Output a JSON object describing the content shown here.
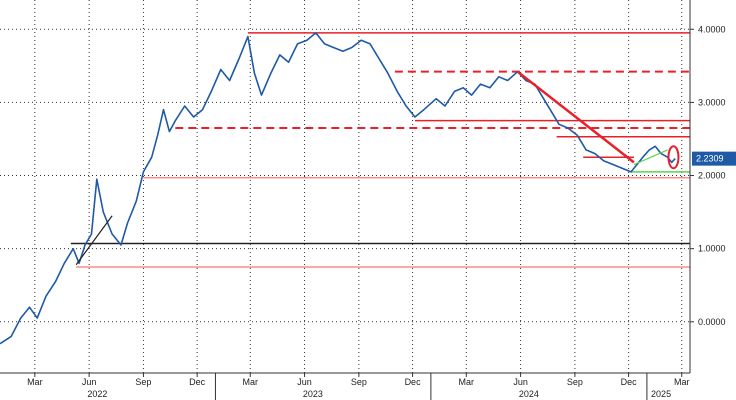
{
  "chart_data": {
    "type": "line",
    "title": "",
    "xlabel": "",
    "ylabel": "",
    "ylim": [
      -0.7,
      4.4
    ],
    "xlim": [
      "2022-01-01",
      "2025-03-15"
    ],
    "grid": true,
    "y_axis_position": "right",
    "y_ticks": [
      {
        "value": 4.0,
        "label": "4.0000"
      },
      {
        "value": 3.0,
        "label": "3.0000"
      },
      {
        "value": 2.0,
        "label": "2.0000"
      },
      {
        "value": 1.0,
        "label": "1.0000"
      },
      {
        "value": 0.0,
        "label": "0.0000"
      }
    ],
    "x_ticks": [
      {
        "date": "2022-03-01",
        "label": "Mar"
      },
      {
        "date": "2022-06-01",
        "label": "Jun"
      },
      {
        "date": "2022-09-01",
        "label": "Sep"
      },
      {
        "date": "2022-12-01",
        "label": "Dec"
      },
      {
        "date": "2023-03-01",
        "label": "Mar"
      },
      {
        "date": "2023-06-01",
        "label": "Jun"
      },
      {
        "date": "2023-09-01",
        "label": "Sep"
      },
      {
        "date": "2023-12-01",
        "label": "Dec"
      },
      {
        "date": "2024-03-01",
        "label": "Mar"
      },
      {
        "date": "2024-06-01",
        "label": "Jun"
      },
      {
        "date": "2024-09-01",
        "label": "Sep"
      },
      {
        "date": "2024-12-01",
        "label": "Dec"
      },
      {
        "date": "2025-03-01",
        "label": "Mar"
      }
    ],
    "year_labels": [
      {
        "date": "2022-06-15",
        "label": "2022"
      },
      {
        "date": "2023-06-15",
        "label": "2023"
      },
      {
        "date": "2024-06-15",
        "label": "2024"
      },
      {
        "date": "2025-01-25",
        "label": "2025"
      }
    ],
    "last_value": {
      "value": 2.2309,
      "label": "2.2309"
    },
    "series": [
      {
        "color": "#1f5aa6",
        "points": [
          [
            "2022-01-01",
            -0.3
          ],
          [
            "2022-01-20",
            -0.2
          ],
          [
            "2022-02-05",
            0.05
          ],
          [
            "2022-02-20",
            0.2
          ],
          [
            "2022-03-05",
            0.05
          ],
          [
            "2022-03-20",
            0.35
          ],
          [
            "2022-04-05",
            0.55
          ],
          [
            "2022-04-20",
            0.8
          ],
          [
            "2022-05-05",
            1.0
          ],
          [
            "2022-05-15",
            0.8
          ],
          [
            "2022-05-25",
            1.05
          ],
          [
            "2022-06-05",
            1.2
          ],
          [
            "2022-06-14",
            1.95
          ],
          [
            "2022-06-25",
            1.5
          ],
          [
            "2022-07-10",
            1.2
          ],
          [
            "2022-07-25",
            1.05
          ],
          [
            "2022-08-05",
            1.35
          ],
          [
            "2022-08-20",
            1.65
          ],
          [
            "2022-09-01",
            2.05
          ],
          [
            "2022-09-15",
            2.25
          ],
          [
            "2022-09-25",
            2.55
          ],
          [
            "2022-10-05",
            2.9
          ],
          [
            "2022-10-15",
            2.6
          ],
          [
            "2022-10-25",
            2.75
          ],
          [
            "2022-11-10",
            2.95
          ],
          [
            "2022-11-25",
            2.8
          ],
          [
            "2022-12-10",
            2.9
          ],
          [
            "2022-12-25",
            3.15
          ],
          [
            "2023-01-10",
            3.45
          ],
          [
            "2023-01-25",
            3.3
          ],
          [
            "2023-02-10",
            3.6
          ],
          [
            "2023-02-25",
            3.9
          ],
          [
            "2023-03-08",
            3.4
          ],
          [
            "2023-03-20",
            3.1
          ],
          [
            "2023-04-05",
            3.4
          ],
          [
            "2023-04-20",
            3.65
          ],
          [
            "2023-05-05",
            3.55
          ],
          [
            "2023-05-20",
            3.8
          ],
          [
            "2023-06-05",
            3.85
          ],
          [
            "2023-06-20",
            3.95
          ],
          [
            "2023-07-05",
            3.8
          ],
          [
            "2023-07-20",
            3.75
          ],
          [
            "2023-08-05",
            3.7
          ],
          [
            "2023-08-20",
            3.75
          ],
          [
            "2023-09-05",
            3.85
          ],
          [
            "2023-09-20",
            3.8
          ],
          [
            "2023-10-05",
            3.6
          ],
          [
            "2023-10-20",
            3.4
          ],
          [
            "2023-11-05",
            3.15
          ],
          [
            "2023-11-20",
            2.95
          ],
          [
            "2023-12-05",
            2.8
          ],
          [
            "2023-12-20",
            2.9
          ],
          [
            "2024-01-10",
            3.05
          ],
          [
            "2024-01-25",
            2.95
          ],
          [
            "2024-02-10",
            3.15
          ],
          [
            "2024-02-25",
            3.2
          ],
          [
            "2024-03-10",
            3.1
          ],
          [
            "2024-03-25",
            3.25
          ],
          [
            "2024-04-10",
            3.2
          ],
          [
            "2024-04-25",
            3.35
          ],
          [
            "2024-05-10",
            3.3
          ],
          [
            "2024-05-27",
            3.42
          ],
          [
            "2024-06-10",
            3.3
          ],
          [
            "2024-06-25",
            3.25
          ],
          [
            "2024-07-10",
            3.05
          ],
          [
            "2024-07-25",
            2.85
          ],
          [
            "2024-08-05",
            2.7
          ],
          [
            "2024-08-20",
            2.65
          ],
          [
            "2024-09-05",
            2.55
          ],
          [
            "2024-09-20",
            2.35
          ],
          [
            "2024-10-05",
            2.3
          ],
          [
            "2024-10-20",
            2.2
          ],
          [
            "2024-11-05",
            2.15
          ],
          [
            "2024-11-20",
            2.1
          ],
          [
            "2024-12-05",
            2.05
          ],
          [
            "2024-12-15",
            2.15
          ],
          [
            "2024-12-25",
            2.25
          ],
          [
            "2025-01-05",
            2.35
          ],
          [
            "2025-01-15",
            2.4
          ],
          [
            "2025-01-25",
            2.3
          ],
          [
            "2025-02-05",
            2.25
          ],
          [
            "2025-02-12",
            2.18
          ],
          [
            "2025-02-18",
            2.2309
          ]
        ]
      }
    ],
    "annotations": [
      {
        "type": "hline",
        "y": 3.95,
        "from": "2023-02-25",
        "to": "2025-03-15",
        "color": "#e8202a",
        "style": "solid"
      },
      {
        "type": "hline",
        "y": 3.42,
        "from": "2023-11-01",
        "to": "2025-03-15",
        "color": "#e8202a",
        "style": "dashed"
      },
      {
        "type": "hline",
        "y": 2.75,
        "from": "2023-12-05",
        "to": "2025-03-15",
        "color": "#e8202a",
        "style": "solid"
      },
      {
        "type": "hline",
        "y": 2.65,
        "from": "2022-10-25",
        "to": "2025-03-15",
        "color": "#e8202a",
        "style": "dashed"
      },
      {
        "type": "hline",
        "y": 2.53,
        "from": "2024-08-01",
        "to": "2025-03-15",
        "color": "#e8202a",
        "style": "solid"
      },
      {
        "type": "hline",
        "y": 2.25,
        "from": "2024-09-15",
        "to": "2024-12-10",
        "color": "#e8202a",
        "style": "solid"
      },
      {
        "type": "hline",
        "y": 1.97,
        "from": "2022-09-01",
        "to": "2025-03-15",
        "color": "#ff8a8a",
        "style": "solid"
      },
      {
        "type": "hline",
        "y": 1.07,
        "from": "2022-05-01",
        "to": "2025-03-15",
        "color": "#222222",
        "style": "solid"
      },
      {
        "type": "hline",
        "y": 0.75,
        "from": "2022-05-10",
        "to": "2025-03-15",
        "color": "#ff8a8a",
        "style": "solid"
      },
      {
        "type": "hline",
        "y": 2.05,
        "from": "2024-12-05",
        "to": "2025-03-15",
        "color": "#5ad44a",
        "style": "solid"
      },
      {
        "type": "trend",
        "from": [
          "2024-05-27",
          3.42
        ],
        "to": [
          "2024-12-10",
          2.18
        ],
        "color": "#e8202a"
      },
      {
        "type": "trend",
        "from": [
          "2022-05-10",
          0.78
        ],
        "to": [
          "2022-07-10",
          1.45
        ],
        "color": "#222222"
      },
      {
        "type": "trend",
        "from": [
          "2024-12-10",
          2.15
        ],
        "to": [
          "2025-02-05",
          2.35
        ],
        "color": "#5ad44a"
      },
      {
        "type": "ellipse",
        "at": [
          "2025-02-15",
          2.25
        ],
        "color": "#e8202a"
      }
    ]
  }
}
